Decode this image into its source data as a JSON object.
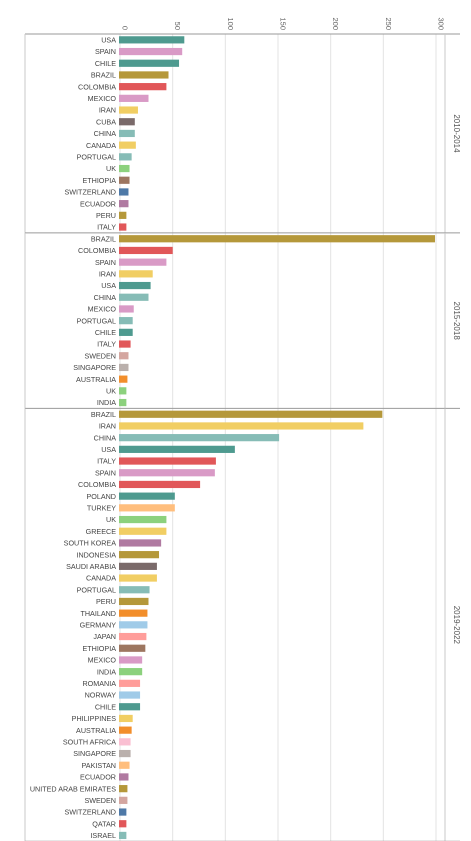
{
  "chart_data": {
    "type": "bar",
    "orientation": "horizontal",
    "x_ticks": [
      0,
      50,
      100,
      150,
      200,
      250,
      300
    ],
    "xlim": [
      0,
      300
    ],
    "grid": true,
    "panels": [
      {
        "period": "2010-2014",
        "bars": [
          {
            "country": "USA",
            "value": 62,
            "color": "#4e9a8f"
          },
          {
            "country": "SPAIN",
            "value": 60,
            "color": "#d99ac6"
          },
          {
            "country": "CHILE",
            "value": 57,
            "color": "#4e9a8f"
          },
          {
            "country": "BRAZIL",
            "value": 47,
            "color": "#b5983a"
          },
          {
            "country": "COLOMBIA",
            "value": 45,
            "color": "#e15759"
          },
          {
            "country": "MEXICO",
            "value": 28,
            "color": "#d99ac6"
          },
          {
            "country": "IRAN",
            "value": 18,
            "color": "#f1ce63"
          },
          {
            "country": "CUBA",
            "value": 15,
            "color": "#7a6a6a"
          },
          {
            "country": "CHINA",
            "value": 15,
            "color": "#86bcb6"
          },
          {
            "country": "CANADA",
            "value": 16,
            "color": "#f1ce63"
          },
          {
            "country": "PORTUGAL",
            "value": 12,
            "color": "#86bcb6"
          },
          {
            "country": "UK",
            "value": 10,
            "color": "#8cd17d"
          },
          {
            "country": "ETHIOPIA",
            "value": 10,
            "color": "#9d7660"
          },
          {
            "country": "SWITZERLAND",
            "value": 9,
            "color": "#4e79a7"
          },
          {
            "country": "ECUADOR",
            "value": 9,
            "color": "#b07aa1"
          },
          {
            "country": "PERU",
            "value": 7,
            "color": "#b5983a"
          },
          {
            "country": "ITALY",
            "value": 7,
            "color": "#e15759"
          }
        ]
      },
      {
        "period": "2015-2018",
        "bars": [
          {
            "country": "BRAZIL",
            "value": 300,
            "color": "#b5983a"
          },
          {
            "country": "COLOMBIA",
            "value": 51,
            "color": "#e15759"
          },
          {
            "country": "SPAIN",
            "value": 45,
            "color": "#d99ac6"
          },
          {
            "country": "IRAN",
            "value": 32,
            "color": "#f1ce63"
          },
          {
            "country": "USA",
            "value": 30,
            "color": "#4e9a8f"
          },
          {
            "country": "CHINA",
            "value": 28,
            "color": "#86bcb6"
          },
          {
            "country": "MEXICO",
            "value": 14,
            "color": "#d99ac6"
          },
          {
            "country": "PORTUGAL",
            "value": 13,
            "color": "#86bcb6"
          },
          {
            "country": "CHILE",
            "value": 13,
            "color": "#4e9a8f"
          },
          {
            "country": "ITALY",
            "value": 11,
            "color": "#e15759"
          },
          {
            "country": "SWEDEN",
            "value": 9,
            "color": "#d4a6a0"
          },
          {
            "country": "SINGAPORE",
            "value": 9,
            "color": "#bab0ac"
          },
          {
            "country": "AUSTRALIA",
            "value": 8,
            "color": "#f28e2b"
          },
          {
            "country": "UK",
            "value": 7,
            "color": "#8cd17d"
          },
          {
            "country": "INDIA",
            "value": 7,
            "color": "#8cd17d"
          }
        ]
      },
      {
        "period": "2019-2022",
        "bars": [
          {
            "country": "BRAZIL",
            "value": 250,
            "color": "#b5983a"
          },
          {
            "country": "IRAN",
            "value": 232,
            "color": "#f1ce63"
          },
          {
            "country": "CHINA",
            "value": 152,
            "color": "#86bcb6"
          },
          {
            "country": "USA",
            "value": 110,
            "color": "#4e9a8f"
          },
          {
            "country": "ITALY",
            "value": 92,
            "color": "#e15759"
          },
          {
            "country": "SPAIN",
            "value": 91,
            "color": "#d99ac6"
          },
          {
            "country": "COLOMBIA",
            "value": 77,
            "color": "#e15759"
          },
          {
            "country": "POLAND",
            "value": 53,
            "color": "#4e9a8f"
          },
          {
            "country": "TURKEY",
            "value": 53,
            "color": "#ffbe7d"
          },
          {
            "country": "UK",
            "value": 45,
            "color": "#8cd17d"
          },
          {
            "country": "GREECE",
            "value": 45,
            "color": "#f1ce63"
          },
          {
            "country": "SOUTH KOREA",
            "value": 40,
            "color": "#b07aa1"
          },
          {
            "country": "INDONESIA",
            "value": 38,
            "color": "#b5983a"
          },
          {
            "country": "SAUDI ARABIA",
            "value": 36,
            "color": "#7a6a6a"
          },
          {
            "country": "CANADA",
            "value": 36,
            "color": "#f1ce63"
          },
          {
            "country": "PORTUGAL",
            "value": 29,
            "color": "#86bcb6"
          },
          {
            "country": "PERU",
            "value": 28,
            "color": "#b5983a"
          },
          {
            "country": "THAILAND",
            "value": 27,
            "color": "#f28e2b"
          },
          {
            "country": "GERMANY",
            "value": 27,
            "color": "#a0cbe8"
          },
          {
            "country": "JAPAN",
            "value": 26,
            "color": "#ff9d9a"
          },
          {
            "country": "ETHIOPIA",
            "value": 25,
            "color": "#9d7660"
          },
          {
            "country": "MEXICO",
            "value": 22,
            "color": "#d99ac6"
          },
          {
            "country": "INDIA",
            "value": 22,
            "color": "#8cd17d"
          },
          {
            "country": "ROMANIA",
            "value": 20,
            "color": "#ff9d9a"
          },
          {
            "country": "NORWAY",
            "value": 20,
            "color": "#a0cbe8"
          },
          {
            "country": "CHILE",
            "value": 20,
            "color": "#4e9a8f"
          },
          {
            "country": "PHILIPPINES",
            "value": 13,
            "color": "#f1ce63"
          },
          {
            "country": "AUSTRALIA",
            "value": 12,
            "color": "#f28e2b"
          },
          {
            "country": "SOUTH AFRICA",
            "value": 11,
            "color": "#fabfd2"
          },
          {
            "country": "SINGAPORE",
            "value": 11,
            "color": "#bab0ac"
          },
          {
            "country": "PAKISTAN",
            "value": 10,
            "color": "#ffbe7d"
          },
          {
            "country": "ECUADOR",
            "value": 9,
            "color": "#b07aa1"
          },
          {
            "country": "UNITED ARAB EMIRATES",
            "value": 8,
            "color": "#b5983a"
          },
          {
            "country": "SWEDEN",
            "value": 8,
            "color": "#d4a6a0"
          },
          {
            "country": "SWITZERLAND",
            "value": 7,
            "color": "#4e79a7"
          },
          {
            "country": "QATAR",
            "value": 7,
            "color": "#e15759"
          },
          {
            "country": "ISRAEL",
            "value": 7,
            "color": "#86bcb6"
          }
        ]
      }
    ]
  }
}
